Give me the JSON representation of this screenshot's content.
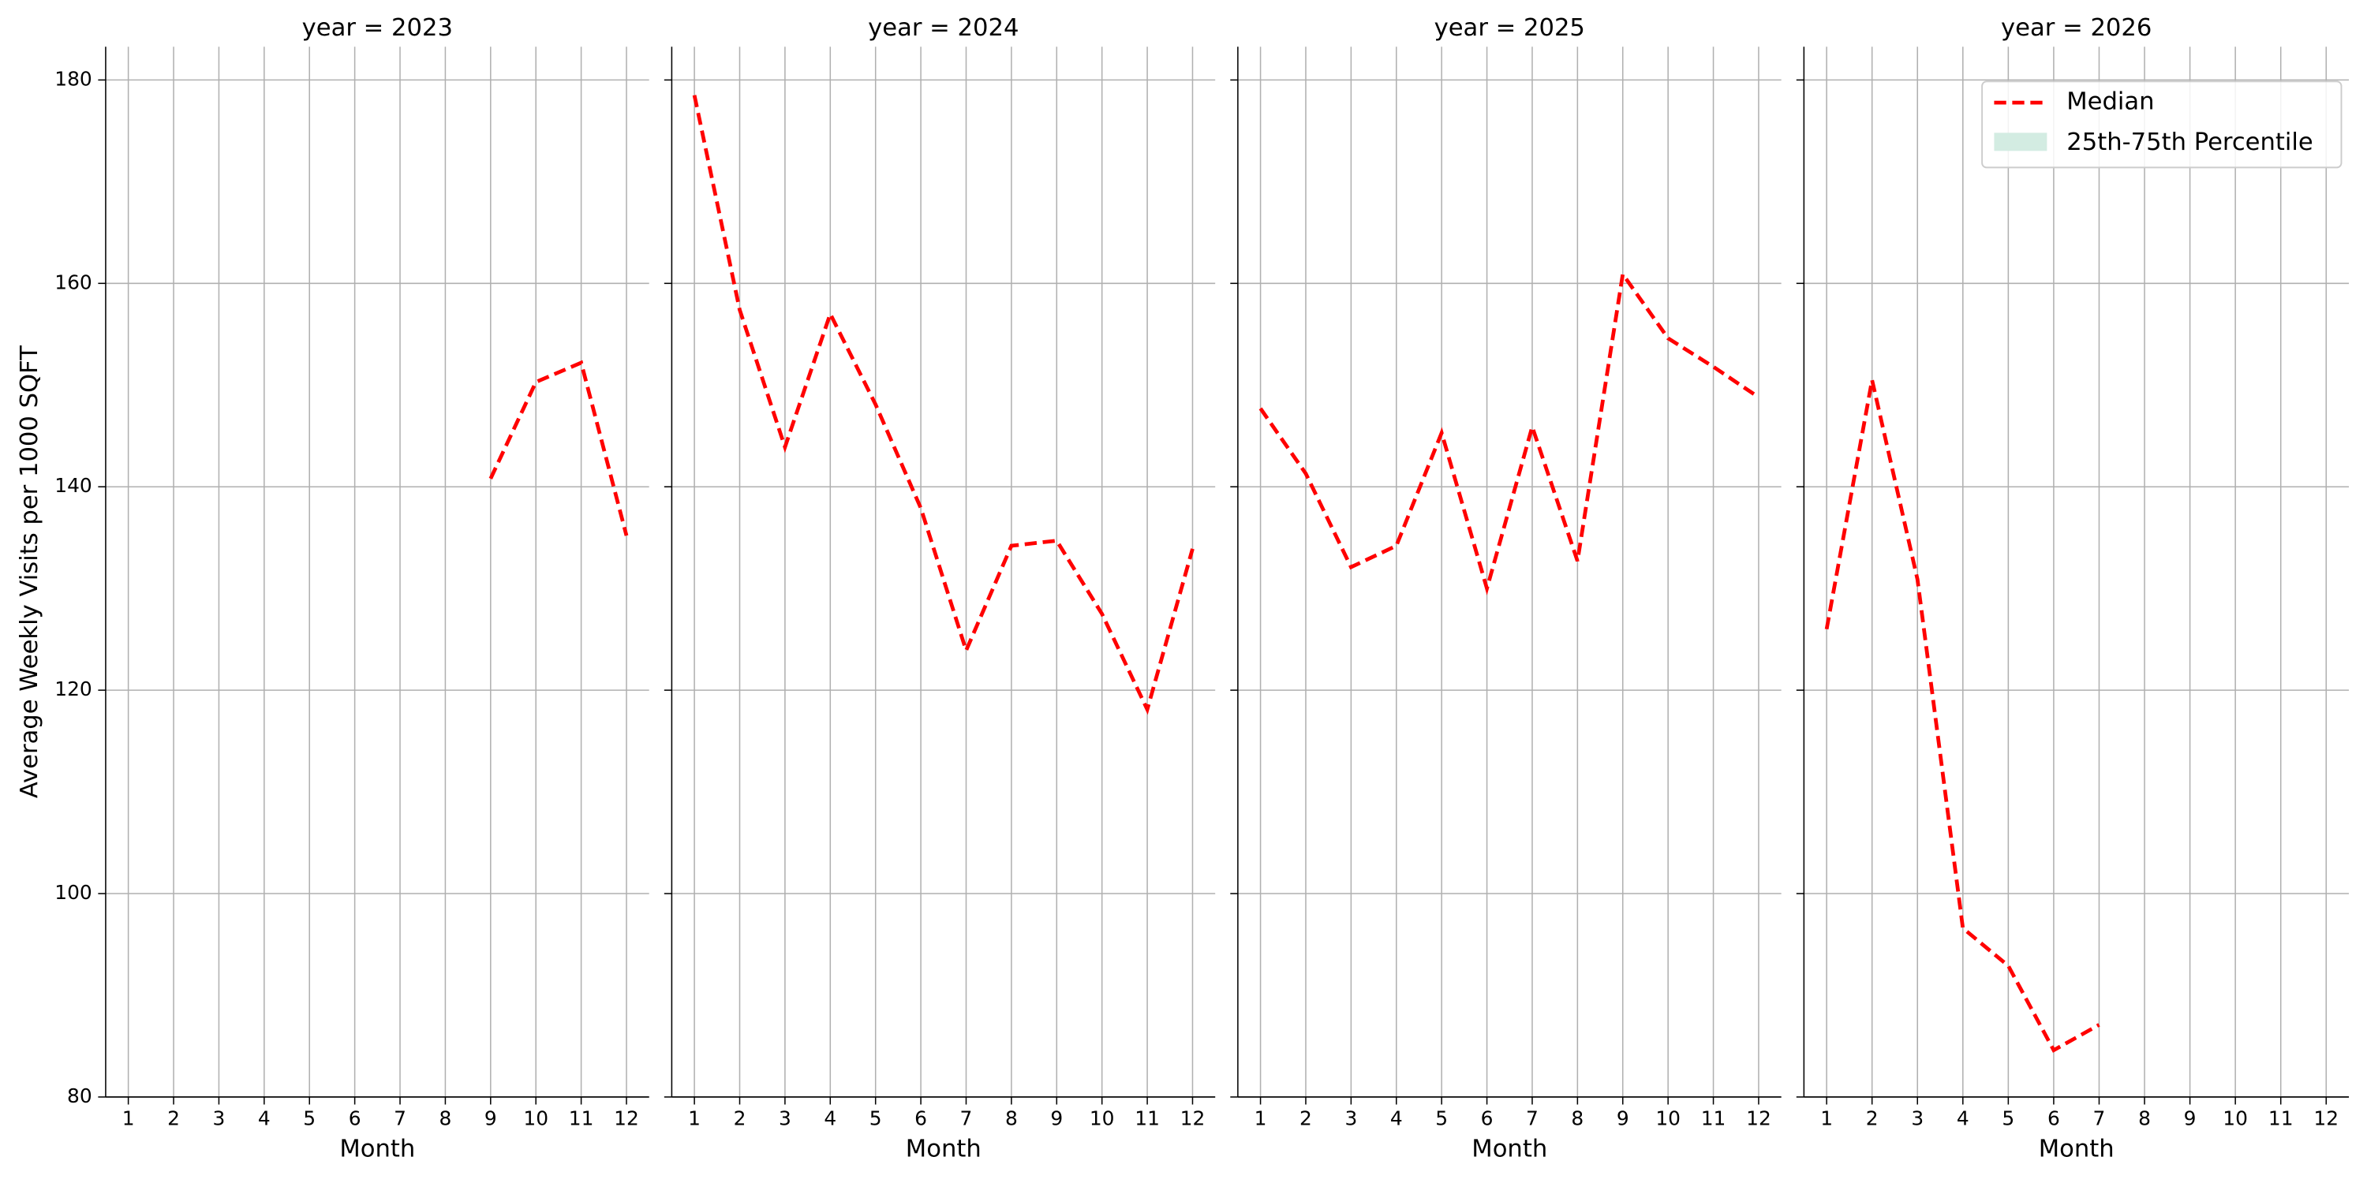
{
  "chart_data": [
    {
      "type": "line",
      "title": "year = 2023",
      "xlabel": "Month",
      "ylabel": "Average Weekly Visits per 1000 SQFT",
      "x": [
        1,
        2,
        3,
        4,
        5,
        6,
        7,
        8,
        9,
        10,
        11,
        12
      ],
      "series": [
        {
          "name": "Median",
          "color": "#ff0000",
          "values": [
            null,
            null,
            null,
            null,
            null,
            null,
            null,
            null,
            140.8,
            150.3,
            152.2,
            135.2
          ]
        }
      ],
      "xlim": [
        0.5,
        12.5
      ],
      "ylim": [
        80,
        180
      ],
      "xticks": [
        1,
        2,
        3,
        4,
        5,
        6,
        7,
        8,
        9,
        10,
        11,
        12
      ],
      "yticks": [
        80,
        100,
        120,
        140,
        160,
        180
      ],
      "grid": true
    },
    {
      "type": "line",
      "title": "year = 2024",
      "xlabel": "Month",
      "x": [
        1,
        2,
        3,
        4,
        5,
        6,
        7,
        8,
        9,
        10,
        11,
        12
      ],
      "series": [
        {
          "name": "Median",
          "color": "#ff0000",
          "values": [
            178.5,
            157.4,
            143.9,
            157.0,
            148.1,
            137.9,
            123.9,
            134.2,
            134.7,
            127.5,
            118.1,
            133.9
          ]
        }
      ],
      "xlim": [
        0.5,
        12.5
      ],
      "ylim": [
        80,
        180
      ],
      "xticks": [
        1,
        2,
        3,
        4,
        5,
        6,
        7,
        8,
        9,
        10,
        11,
        12
      ],
      "yticks": [
        80,
        100,
        120,
        140,
        160,
        180
      ],
      "grid": true
    },
    {
      "type": "line",
      "title": "year = 2025",
      "xlabel": "Month",
      "x": [
        1,
        2,
        3,
        4,
        5,
        6,
        7,
        8,
        9,
        10,
        11,
        12
      ],
      "series": [
        {
          "name": "Median",
          "color": "#ff0000",
          "values": [
            147.7,
            141.3,
            132.1,
            134.2,
            145.3,
            130.0,
            145.9,
            132.7,
            160.9,
            154.6,
            151.8,
            148.8
          ]
        }
      ],
      "xlim": [
        0.5,
        12.5
      ],
      "ylim": [
        80,
        180
      ],
      "xticks": [
        1,
        2,
        3,
        4,
        5,
        6,
        7,
        8,
        9,
        10,
        11,
        12
      ],
      "yticks": [
        80,
        100,
        120,
        140,
        160,
        180
      ],
      "grid": true
    },
    {
      "type": "line",
      "title": "year = 2026",
      "xlabel": "Month",
      "x": [
        1,
        2,
        3,
        4,
        5,
        6,
        7,
        8,
        9,
        10,
        11,
        12
      ],
      "series": [
        {
          "name": "Median",
          "color": "#ff0000",
          "values": [
            126.0,
            150.5,
            130.9,
            96.6,
            92.9,
            84.6,
            87.1,
            null,
            null,
            null,
            null,
            null
          ]
        }
      ],
      "band": {
        "name": "25th-75th Percentile",
        "color": "#d3ece2"
      },
      "xlim": [
        0.5,
        12.5
      ],
      "ylim": [
        80,
        180
      ],
      "xticks": [
        1,
        2,
        3,
        4,
        5,
        6,
        7,
        8,
        9,
        10,
        11,
        12
      ],
      "yticks": [
        80,
        100,
        120,
        140,
        160,
        180
      ],
      "grid": true,
      "legend": "upper right"
    }
  ]
}
